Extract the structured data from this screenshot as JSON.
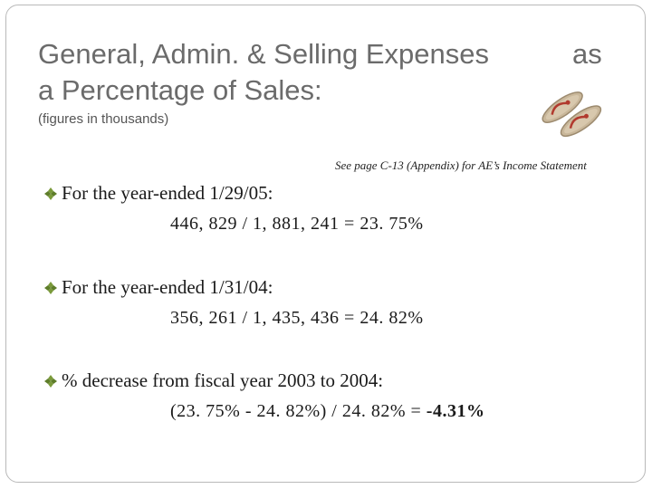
{
  "slide": {
    "title_line1": "General, Admin. & Selling Expenses",
    "title_suffix": "as",
    "title_line2": "a Percentage of Sales:",
    "subtitle": "(figures in thousands)",
    "note": "See page C-13 (Appendix) for AE’s Income Statement"
  },
  "sections": [
    {
      "heading": "For the year-ended 1/29/05:",
      "calculation": "446, 829 / 1, 881, 241 = 23. 75%"
    },
    {
      "heading": "For the year-ended 1/31/04:",
      "calculation": "356, 261 / 1, 435, 436 = 24. 82%"
    },
    {
      "heading": "% decrease from fiscal year 2003 to 2004:",
      "calculation": "(23. 75% - 24. 82%) / 24. 82% = ",
      "result": "-4.31%"
    }
  ],
  "icons": {
    "bullet": "diamond-bullet-icon",
    "decoration": "flip-flops-icon"
  },
  "colors": {
    "bullet": "#7a9a3a",
    "title": "#6b6b6b",
    "frame": "#b9b9b9"
  }
}
